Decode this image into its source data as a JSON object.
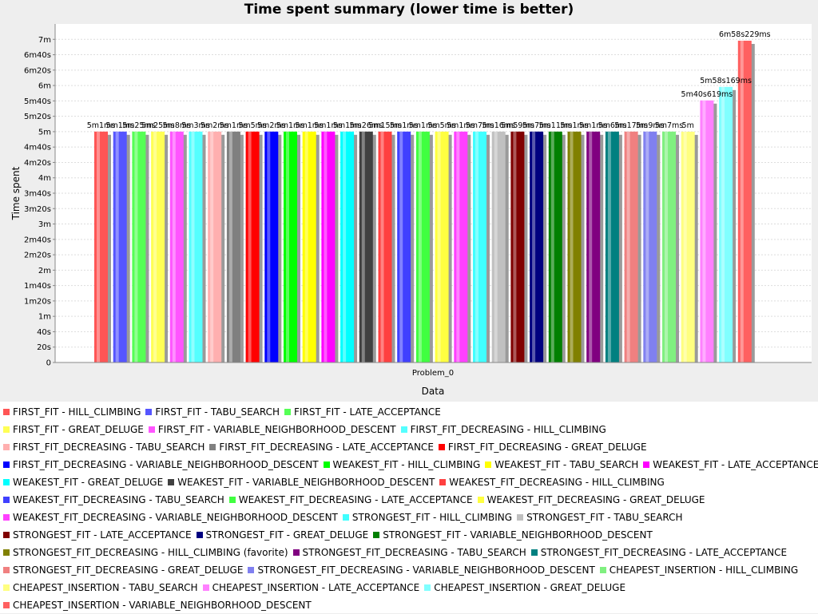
{
  "chart_data": {
    "type": "bar",
    "title": "Time spent summary (lower time is better)",
    "xlabel": "Data",
    "ylabel": "Time spent",
    "categories": [
      "Problem_0"
    ],
    "y_unit": "seconds",
    "ylim": [
      0,
      440
    ],
    "y_ticks": [
      {
        "value": 0,
        "label": "0"
      },
      {
        "value": 20,
        "label": "20s"
      },
      {
        "value": 40,
        "label": "40s"
      },
      {
        "value": 60,
        "label": "1m"
      },
      {
        "value": 80,
        "label": "1m20s"
      },
      {
        "value": 100,
        "label": "1m40s"
      },
      {
        "value": 120,
        "label": "2m"
      },
      {
        "value": 140,
        "label": "2m20s"
      },
      {
        "value": 160,
        "label": "2m40s"
      },
      {
        "value": 180,
        "label": "3m"
      },
      {
        "value": 200,
        "label": "3m20s"
      },
      {
        "value": 220,
        "label": "3m40s"
      },
      {
        "value": 240,
        "label": "4m"
      },
      {
        "value": 260,
        "label": "4m20s"
      },
      {
        "value": 280,
        "label": "4m40s"
      },
      {
        "value": 300,
        "label": "5m"
      },
      {
        "value": 320,
        "label": "5m20s"
      },
      {
        "value": 340,
        "label": "5m40s"
      },
      {
        "value": 360,
        "label": "6m"
      },
      {
        "value": 380,
        "label": "6m20s"
      },
      {
        "value": 400,
        "label": "6m40s"
      },
      {
        "value": 420,
        "label": "7m"
      }
    ],
    "grid": true,
    "legend_position": "bottom",
    "series": [
      {
        "name": "FIRST_FIT - HILL_CLIMBING",
        "value": 300.1,
        "label": "5m1ms",
        "color": "#ff5555"
      },
      {
        "name": "FIRST_FIT - TABU_SEARCH",
        "value": 300.1,
        "label": "5m1ms",
        "color": "#5555ff"
      },
      {
        "name": "FIRST_FIT - LATE_ACCEPTANCE",
        "value": 300.1,
        "label": "5m25ms",
        "color": "#55ff55"
      },
      {
        "name": "FIRST_FIT - GREAT_DELUGE",
        "value": 300.1,
        "label": "5m25ms",
        "color": "#ffff55"
      },
      {
        "name": "FIRST_FIT - VARIABLE_NEIGHBORHOOD_DESCENT",
        "value": 300.1,
        "label": "5m8ms",
        "color": "#ff55ff"
      },
      {
        "name": "FIRST_FIT_DECREASING - HILL_CLIMBING",
        "value": 300.1,
        "label": "5m3ms",
        "color": "#55ffff"
      },
      {
        "name": "FIRST_FIT_DECREASING - TABU_SEARCH",
        "value": 300.1,
        "label": "5m2ms",
        "color": "#ffafaf"
      },
      {
        "name": "FIRST_FIT_DECREASING - LATE_ACCEPTANCE",
        "value": 300.1,
        "label": "5m1ms",
        "color": "#808080"
      },
      {
        "name": "FIRST_FIT_DECREASING - GREAT_DELUGE",
        "value": 300.1,
        "label": "5m5ms",
        "color": "#ff0000"
      },
      {
        "name": "FIRST_FIT_DECREASING - VARIABLE_NEIGHBORHOOD_DESCENT",
        "value": 300.1,
        "label": "5m2ms",
        "color": "#0000ff"
      },
      {
        "name": "WEAKEST_FIT - HILL_CLIMBING",
        "value": 300.1,
        "label": "5m1ms",
        "color": "#00ff00"
      },
      {
        "name": "WEAKEST_FIT - TABU_SEARCH",
        "value": 300.1,
        "label": "5m1ms",
        "color": "#ffff00"
      },
      {
        "name": "WEAKEST_FIT - LATE_ACCEPTANCE",
        "value": 300.1,
        "label": "5m1ms",
        "color": "#ff00ff"
      },
      {
        "name": "WEAKEST_FIT - GREAT_DELUGE",
        "value": 300.1,
        "label": "5m1ms",
        "color": "#00ffff"
      },
      {
        "name": "WEAKEST_FIT - VARIABLE_NEIGHBORHOOD_DESCENT",
        "value": 300.1,
        "label": "5m26ms",
        "color": "#404040"
      },
      {
        "name": "WEAKEST_FIT_DECREASING - HILL_CLIMBING",
        "value": 300.1,
        "label": "5m15ms",
        "color": "#ff4040"
      },
      {
        "name": "WEAKEST_FIT_DECREASING - TABU_SEARCH",
        "value": 300.1,
        "label": "5m1ms",
        "color": "#4040ff"
      },
      {
        "name": "WEAKEST_FIT_DECREASING - LATE_ACCEPTANCE",
        "value": 300.1,
        "label": "5m1ms",
        "color": "#40ff40"
      },
      {
        "name": "WEAKEST_FIT_DECREASING - GREAT_DELUGE",
        "value": 300.1,
        "label": "5m5ms",
        "color": "#ffff40"
      },
      {
        "name": "WEAKEST_FIT_DECREASING - VARIABLE_NEIGHBORHOOD_DESCENT",
        "value": 300.1,
        "label": "5m1ms",
        "color": "#ff40ff"
      },
      {
        "name": "STRONGEST_FIT - HILL_CLIMBING",
        "value": 300.1,
        "label": "5m7ms",
        "color": "#40ffff"
      },
      {
        "name": "STRONGEST_FIT - TABU_SEARCH",
        "value": 300.1,
        "label": "5m16ms",
        "color": "#c0c0c0"
      },
      {
        "name": "STRONGEST_FIT - LATE_ACCEPTANCE",
        "value": 300.1,
        "label": "5m59ms",
        "color": "#800000"
      },
      {
        "name": "STRONGEST_FIT - GREAT_DELUGE",
        "value": 300.1,
        "label": "5m7ms",
        "color": "#000080"
      },
      {
        "name": "STRONGEST_FIT - VARIABLE_NEIGHBORHOOD_DESCENT",
        "value": 300.1,
        "label": "5m11ms",
        "color": "#008000"
      },
      {
        "name": "STRONGEST_FIT_DECREASING - HILL_CLIMBING (favorite)",
        "value": 300.1,
        "label": "5m1ms",
        "color": "#808000"
      },
      {
        "name": "STRONGEST_FIT_DECREASING - TABU_SEARCH",
        "value": 300.1,
        "label": "5m1ms",
        "color": "#800080"
      },
      {
        "name": "STRONGEST_FIT_DECREASING - LATE_ACCEPTANCE",
        "value": 300.1,
        "label": "5m6ms",
        "color": "#008080"
      },
      {
        "name": "STRONGEST_FIT_DECREASING - GREAT_DELUGE",
        "value": 300.1,
        "label": "5m17ms",
        "color": "#f08080"
      },
      {
        "name": "STRONGEST_FIT_DECREASING - VARIABLE_NEIGHBORHOOD_DESCENT",
        "value": 300.1,
        "label": "5m9ms",
        "color": "#8080f0"
      },
      {
        "name": "CHEAPEST_INSERTION - HILL_CLIMBING",
        "value": 300.1,
        "label": "5m7ms",
        "color": "#80f080"
      },
      {
        "name": "CHEAPEST_INSERTION - TABU_SEARCH",
        "value": 300.0,
        "label": "5m",
        "color": "#ffff80"
      },
      {
        "name": "CHEAPEST_INSERTION - LATE_ACCEPTANCE",
        "value": 340.6,
        "label": "5m40s619ms",
        "color": "#ff80ff"
      },
      {
        "name": "CHEAPEST_INSERTION - GREAT_DELUGE",
        "value": 358.2,
        "label": "5m58s169ms",
        "color": "#80ffff"
      },
      {
        "name": "CHEAPEST_INSERTION - VARIABLE_NEIGHBORHOOD_DESCENT",
        "value": 418.2,
        "label": "6m58s229ms",
        "color": "#ff6060"
      }
    ]
  }
}
